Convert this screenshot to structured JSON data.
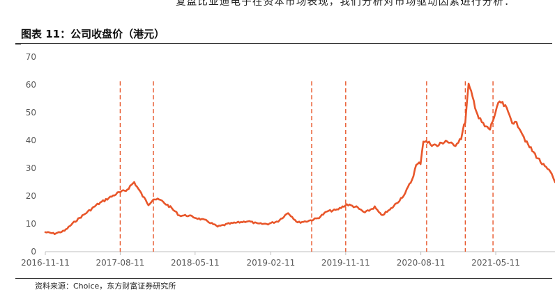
{
  "header_text": "复盘比亚迪电子在资本市场表现，我们分析对市场驱动因素进行分析：",
  "figure_title": "图表 11：公司收盘价（港元）",
  "source_note": "资料来源：Choice，东方财富证券研究所",
  "chart_data": {
    "type": "line",
    "title": "公司收盘价（港元）",
    "xlabel": "",
    "ylabel": "",
    "ylim": [
      0,
      70
    ],
    "yticks": [
      0,
      10,
      20,
      30,
      40,
      50,
      60,
      70
    ],
    "xlim": [
      "2016-11-11",
      "2021-12-13"
    ],
    "xticks": [
      "2016-11-11",
      "2017-08-11",
      "2018-05-11",
      "2019-02-11",
      "2019-11-11",
      "2020-08-11",
      "2021-05-11"
    ],
    "grid": false,
    "legend": "none",
    "series": [
      {
        "color": "#e8562a",
        "x": [
          "2016-11-11",
          "2016-12-15",
          "2017-01-20",
          "2017-03-01",
          "2017-04-10",
          "2017-05-20",
          "2017-06-25",
          "2017-08-01",
          "2017-09-01",
          "2017-10-01",
          "2017-11-01",
          "2017-11-22",
          "2017-12-10",
          "2018-01-05",
          "2018-02-10",
          "2018-03-15",
          "2018-04-15",
          "2018-05-20",
          "2018-06-25",
          "2018-08-01",
          "2018-09-10",
          "2018-10-15",
          "2018-11-20",
          "2018-12-25",
          "2019-02-01",
          "2019-03-10",
          "2019-04-15",
          "2019-05-20",
          "2019-06-25",
          "2019-08-01",
          "2019-09-05",
          "2019-10-10",
          "2019-11-15",
          "2019-12-20",
          "2020-01-20",
          "2020-02-25",
          "2020-03-20",
          "2020-04-20",
          "2020-05-20",
          "2020-06-15",
          "2020-07-10",
          "2020-07-25",
          "2020-08-10",
          "2020-08-20",
          "2020-09-10",
          "2020-10-10",
          "2020-11-10",
          "2020-12-10",
          "2021-01-05",
          "2021-01-20",
          "2021-02-01",
          "2021-02-20",
          "2021-03-10",
          "2021-04-01",
          "2021-04-20",
          "2021-05-10",
          "2021-05-25",
          "2021-06-15",
          "2021-07-10",
          "2021-08-05",
          "2021-09-01",
          "2021-10-01",
          "2021-11-01",
          "2021-12-01",
          "2021-12-13"
        ],
        "y": [
          7,
          6.5,
          7.5,
          11,
          14,
          17,
          19,
          21,
          22,
          25,
          20,
          17,
          19,
          18.5,
          16,
          13,
          13,
          12,
          11,
          9,
          10,
          10.5,
          11,
          10,
          10,
          11,
          14,
          10.5,
          11,
          12,
          14.5,
          15,
          17,
          16,
          14,
          16,
          13,
          15,
          18,
          21,
          26,
          31,
          32,
          40,
          39,
          38,
          40,
          38,
          41,
          47,
          60,
          54,
          48,
          45,
          44,
          50,
          54,
          52,
          47,
          45,
          39,
          35,
          31,
          28,
          25
        ]
      }
    ],
    "annotations": {
      "event_lines": [
        "2017-08-11",
        "2017-12-10",
        "2019-07-10",
        "2019-11-11",
        "2020-09-01",
        "2021-01-20",
        "2021-05-01"
      ],
      "event_line_color": "#e8562a",
      "event_line_style": "dashed"
    }
  }
}
